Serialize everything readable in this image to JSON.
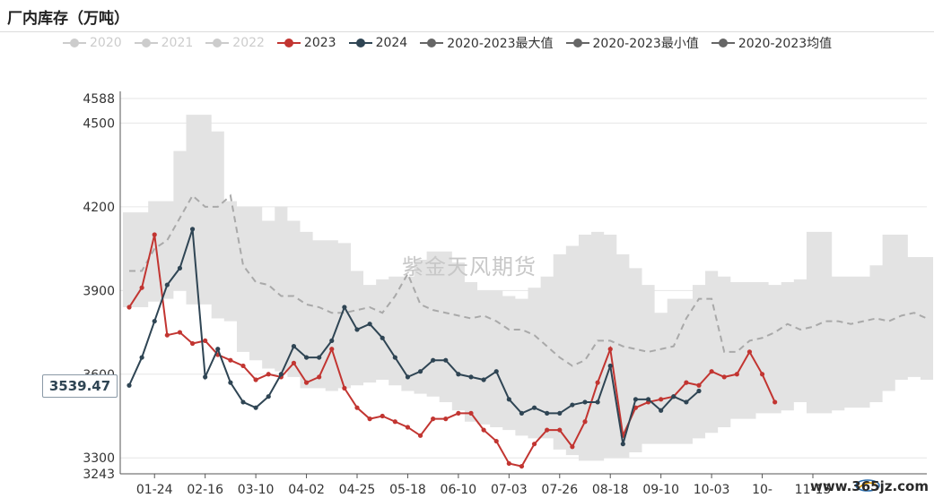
{
  "title": "厂内库存（万吨）",
  "watermark": "紫金天风期货",
  "site": "www.365jz.com",
  "axis_pointer_label": "3539.47",
  "colors": {
    "band": "#e3e3e3",
    "avg": "#a9a9a9",
    "s2023": "#c23531",
    "s2024": "#2f4554",
    "legend_off": "#cccccc",
    "legend_dark": "#666666"
  },
  "legend": [
    {
      "label": "2020",
      "color": "#cccccc",
      "text_color": "#cccccc"
    },
    {
      "label": "2021",
      "color": "#cccccc",
      "text_color": "#cccccc"
    },
    {
      "label": "2022",
      "color": "#cccccc",
      "text_color": "#cccccc"
    },
    {
      "label": "2023",
      "color": "#c23531",
      "text_color": "#333333"
    },
    {
      "label": "2024",
      "color": "#2f4554",
      "text_color": "#333333"
    },
    {
      "label": "2020-2023最大值",
      "color": "#666666",
      "text_color": "#333333"
    },
    {
      "label": "2020-2023最小值",
      "color": "#666666",
      "text_color": "#333333"
    },
    {
      "label": "2020-2023均值",
      "color": "#666666",
      "text_color": "#333333"
    }
  ],
  "chart_data": {
    "type": "line",
    "title": "厂内库存（万吨）",
    "ylim": [
      3243,
      4588
    ],
    "y_ticks": [
      3243,
      3300,
      3600,
      3900,
      4200,
      4500,
      4588
    ],
    "x_ticks": [
      "01-24",
      "02-16",
      "03-10",
      "04-02",
      "04-25",
      "05-18",
      "06-10",
      "07-03",
      "07-26",
      "08-18",
      "09-10",
      "10-03",
      "10-",
      "11-15"
    ],
    "x_tick_positions": [
      2,
      6,
      10,
      14,
      18,
      22,
      26,
      30,
      34,
      38,
      42,
      46,
      50,
      54
    ],
    "n_points": 64,
    "band_max": [
      4180,
      4180,
      4220,
      4220,
      4400,
      4530,
      4530,
      4470,
      4220,
      4200,
      4200,
      4150,
      4200,
      4150,
      4110,
      4080,
      4080,
      4070,
      3970,
      3920,
      3940,
      3950,
      3950,
      4010,
      4040,
      4040,
      4000,
      3930,
      3900,
      3900,
      3880,
      3870,
      3910,
      3950,
      4030,
      4060,
      4100,
      4110,
      4100,
      4030,
      3980,
      3920,
      3820,
      3870,
      3870,
      3920,
      3970,
      3950,
      3930,
      3930,
      3930,
      3920,
      3930,
      3940,
      4110,
      4110,
      3950,
      3950,
      3950,
      3990,
      4100,
      4100,
      4020,
      4020
    ],
    "band_min": [
      3840,
      3840,
      3860,
      3870,
      3900,
      3850,
      3850,
      3800,
      3790,
      3680,
      3650,
      3620,
      3610,
      3590,
      3550,
      3550,
      3540,
      3550,
      3560,
      3570,
      3580,
      3560,
      3540,
      3530,
      3520,
      3500,
      3470,
      3430,
      3420,
      3410,
      3400,
      3380,
      3370,
      3370,
      3330,
      3310,
      3290,
      3290,
      3300,
      3300,
      3320,
      3350,
      3350,
      3350,
      3350,
      3370,
      3390,
      3410,
      3440,
      3440,
      3460,
      3460,
      3470,
      3500,
      3460,
      3460,
      3470,
      3480,
      3480,
      3500,
      3540,
      3580,
      3590,
      3580
    ],
    "avg": [
      3970,
      3970,
      4050,
      4080,
      4160,
      4240,
      4200,
      4200,
      4240,
      3990,
      3930,
      3920,
      3880,
      3880,
      3850,
      3840,
      3820,
      3820,
      3830,
      3840,
      3820,
      3880,
      3960,
      3850,
      3830,
      3820,
      3810,
      3800,
      3810,
      3790,
      3760,
      3760,
      3740,
      3700,
      3660,
      3630,
      3650,
      3720,
      3720,
      3700,
      3690,
      3680,
      3690,
      3700,
      3800,
      3870,
      3870,
      3680,
      3680,
      3720,
      3730,
      3750,
      3780,
      3760,
      3770,
      3790,
      3790,
      3780,
      3790,
      3800,
      3790,
      3810,
      3820,
      3800
    ],
    "series": [
      {
        "name": "2023",
        "values": [
          3840,
          3910,
          4100,
          3740,
          3750,
          3710,
          3720,
          3670,
          3650,
          3630,
          3580,
          3600,
          3590,
          3640,
          3570,
          3590,
          3690,
          3550,
          3480,
          3440,
          3450,
          3430,
          3410,
          3380,
          3440,
          3440,
          3460,
          3460,
          3400,
          3360,
          3280,
          3270,
          3350,
          3400,
          3400,
          3340,
          3430,
          3570,
          3690,
          3380,
          3480,
          3500,
          3510,
          3520,
          3570,
          3560,
          3610,
          3590,
          3600,
          3680,
          3600,
          3500
        ]
      },
      {
        "name": "2024",
        "values": [
          3560,
          3660,
          3790,
          3920,
          3980,
          4120,
          3590,
          3690,
          3570,
          3500,
          3480,
          3520,
          3600,
          3700,
          3660,
          3660,
          3720,
          3840,
          3760,
          3780,
          3730,
          3660,
          3590,
          3610,
          3650,
          3650,
          3600,
          3590,
          3580,
          3610,
          3510,
          3460,
          3480,
          3460,
          3460,
          3490,
          3500,
          3500,
          3630,
          3350,
          3510,
          3510,
          3470,
          3520,
          3500,
          3540
        ]
      }
    ]
  }
}
